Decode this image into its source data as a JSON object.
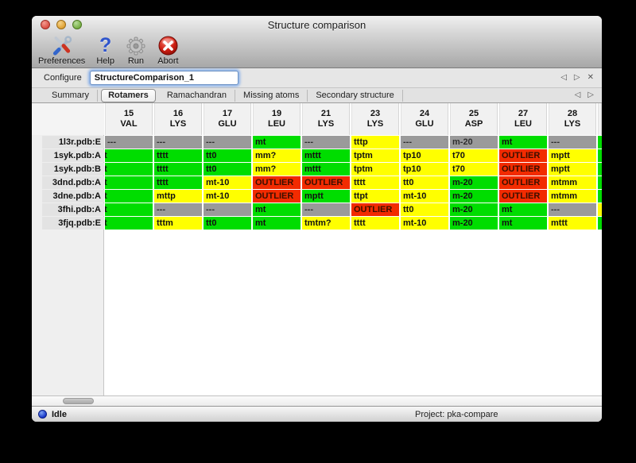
{
  "window": {
    "title": "Structure comparison"
  },
  "window_controls": {
    "close": "close",
    "minimize": "minimize",
    "zoom": "zoom"
  },
  "toolbar": {
    "preferences_label": "Preferences",
    "help_label": "Help",
    "help_glyph": "?",
    "run_label": "Run",
    "abort_label": "Abort"
  },
  "configure": {
    "label": "Configure",
    "value": "StructureComparison_1"
  },
  "nav": {
    "prev": "◁",
    "next": "▷",
    "close": "✕"
  },
  "tabs": [
    {
      "label": "Summary",
      "selected": false
    },
    {
      "label": "Rotamers",
      "selected": true
    },
    {
      "label": "Ramachandran",
      "selected": false
    },
    {
      "label": "Missing atoms",
      "selected": false
    },
    {
      "label": "Secondary structure",
      "selected": false
    }
  ],
  "colors": {
    "green": "#00dd00",
    "yellow": "#ffff00",
    "red": "#f22b00",
    "gray": "#9a9a9a"
  },
  "table": {
    "columns": [
      [
        "15",
        "VAL"
      ],
      [
        "16",
        "LYS"
      ],
      [
        "17",
        "GLU"
      ],
      [
        "19",
        "LEU"
      ],
      [
        "21",
        "LYS"
      ],
      [
        "23",
        "LYS"
      ],
      [
        "24",
        "GLU"
      ],
      [
        "25",
        "ASP"
      ],
      [
        "27",
        "LEU"
      ],
      [
        "28",
        "LYS"
      ]
    ],
    "rows": [
      {
        "label": "1l3r.pdb:E",
        "edge": "g",
        "cells": [
          [
            "---",
            "x"
          ],
          [
            "---",
            "x"
          ],
          [
            "---",
            "x"
          ],
          [
            "mt",
            "g"
          ],
          [
            "---",
            "x"
          ],
          [
            "tttp",
            "y"
          ],
          [
            "---",
            "x"
          ],
          [
            "m-20",
            "x"
          ],
          [
            "mt",
            "g"
          ],
          [
            "---",
            "x"
          ]
        ]
      },
      {
        "label": "1syk.pdb:A",
        "edge": "g",
        "cells": [
          [
            "t",
            "g",
            "clip"
          ],
          [
            "tttt",
            "g"
          ],
          [
            "tt0",
            "g"
          ],
          [
            "mm?",
            "y"
          ],
          [
            "mttt",
            "g"
          ],
          [
            "tptm",
            "y"
          ],
          [
            "tp10",
            "y"
          ],
          [
            "t70",
            "y"
          ],
          [
            "OUTLIER",
            "r"
          ],
          [
            "mptt",
            "y"
          ]
        ]
      },
      {
        "label": "1syk.pdb:B",
        "edge": "g",
        "cells": [
          [
            "t",
            "g",
            "clip"
          ],
          [
            "tttt",
            "g"
          ],
          [
            "tt0",
            "g"
          ],
          [
            "mm?",
            "y"
          ],
          [
            "mttt",
            "g"
          ],
          [
            "tptm",
            "y"
          ],
          [
            "tp10",
            "y"
          ],
          [
            "t70",
            "y"
          ],
          [
            "OUTLIER",
            "r"
          ],
          [
            "mptt",
            "y"
          ]
        ]
      },
      {
        "label": "3dnd.pdb:A",
        "edge": "g",
        "cells": [
          [
            "t",
            "g",
            "clip"
          ],
          [
            "tttt",
            "g"
          ],
          [
            "mt-10",
            "y"
          ],
          [
            "OUTLIER",
            "r"
          ],
          [
            "OUTLIER",
            "r"
          ],
          [
            "tttt",
            "y"
          ],
          [
            "tt0",
            "y"
          ],
          [
            "m-20",
            "g"
          ],
          [
            "OUTLIER",
            "r"
          ],
          [
            "mtmm",
            "y"
          ]
        ]
      },
      {
        "label": "3dne.pdb:A",
        "edge": "g",
        "cells": [
          [
            "t",
            "g",
            "clip"
          ],
          [
            "mttp",
            "y"
          ],
          [
            "mt-10",
            "y"
          ],
          [
            "OUTLIER",
            "r"
          ],
          [
            "mptt",
            "g"
          ],
          [
            "ttpt",
            "y"
          ],
          [
            "mt-10",
            "y"
          ],
          [
            "m-20",
            "g"
          ],
          [
            "OUTLIER",
            "r"
          ],
          [
            "mtmm",
            "y"
          ]
        ]
      },
      {
        "label": "3fhi.pdb:A",
        "edge": "y",
        "cells": [
          [
            "t",
            "g",
            "clip"
          ],
          [
            "---",
            "x"
          ],
          [
            "---",
            "x"
          ],
          [
            "mt",
            "g"
          ],
          [
            "---",
            "x"
          ],
          [
            "OUTLIER",
            "r"
          ],
          [
            "tt0",
            "y"
          ],
          [
            "m-20",
            "g"
          ],
          [
            "mt",
            "g"
          ],
          [
            "---",
            "x"
          ]
        ]
      },
      {
        "label": "3fjq.pdb:E",
        "edge": "g",
        "cells": [
          [
            "t",
            "g",
            "clip"
          ],
          [
            "tttm",
            "y"
          ],
          [
            "tt0",
            "g"
          ],
          [
            "mt",
            "g"
          ],
          [
            "tmtm?",
            "y"
          ],
          [
            "tttt",
            "y"
          ],
          [
            "mt-10",
            "y"
          ],
          [
            "m-20",
            "g"
          ],
          [
            "mt",
            "g"
          ],
          [
            "mttt",
            "y"
          ]
        ]
      }
    ]
  },
  "status": {
    "state": "Idle",
    "project": "Project: pka-compare"
  }
}
